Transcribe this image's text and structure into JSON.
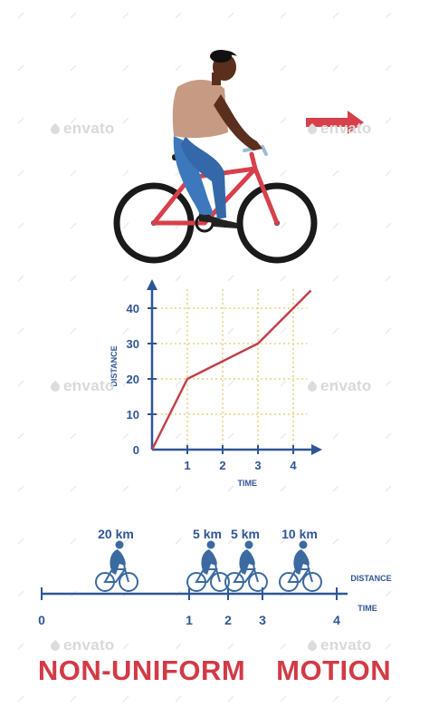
{
  "watermark": "envato",
  "title_words": [
    "NON-UNIFORM",
    "MOTION"
  ],
  "colors": {
    "axis": "#2f5597",
    "line": "#c0404b",
    "grid": "#e0c96a",
    "title": "#d23a46",
    "arrow": "#d7404a",
    "cyclist": "#3b6aa0"
  },
  "chart_data": [
    {
      "type": "line",
      "xlabel": "TIME",
      "ylabel": "DISTANCE",
      "x_ticks": [
        "1",
        "2",
        "3",
        "4"
      ],
      "y_ticks": [
        "0",
        "10",
        "20",
        "30",
        "40"
      ],
      "xlim": [
        0,
        4.5
      ],
      "ylim": [
        0,
        45
      ],
      "grid": true,
      "series": [
        {
          "x": [
            0,
            1,
            2,
            3,
            4.5
          ],
          "y": [
            0,
            20,
            25,
            30,
            45
          ]
        }
      ]
    },
    {
      "type": "number-line",
      "axis_label": "DISTANCE",
      "time_label": "TIME",
      "ticks": [
        "0",
        "1",
        "2",
        "3",
        "4"
      ],
      "segments": [
        "20 km",
        "5 km",
        "5 km",
        "10 km"
      ]
    }
  ]
}
